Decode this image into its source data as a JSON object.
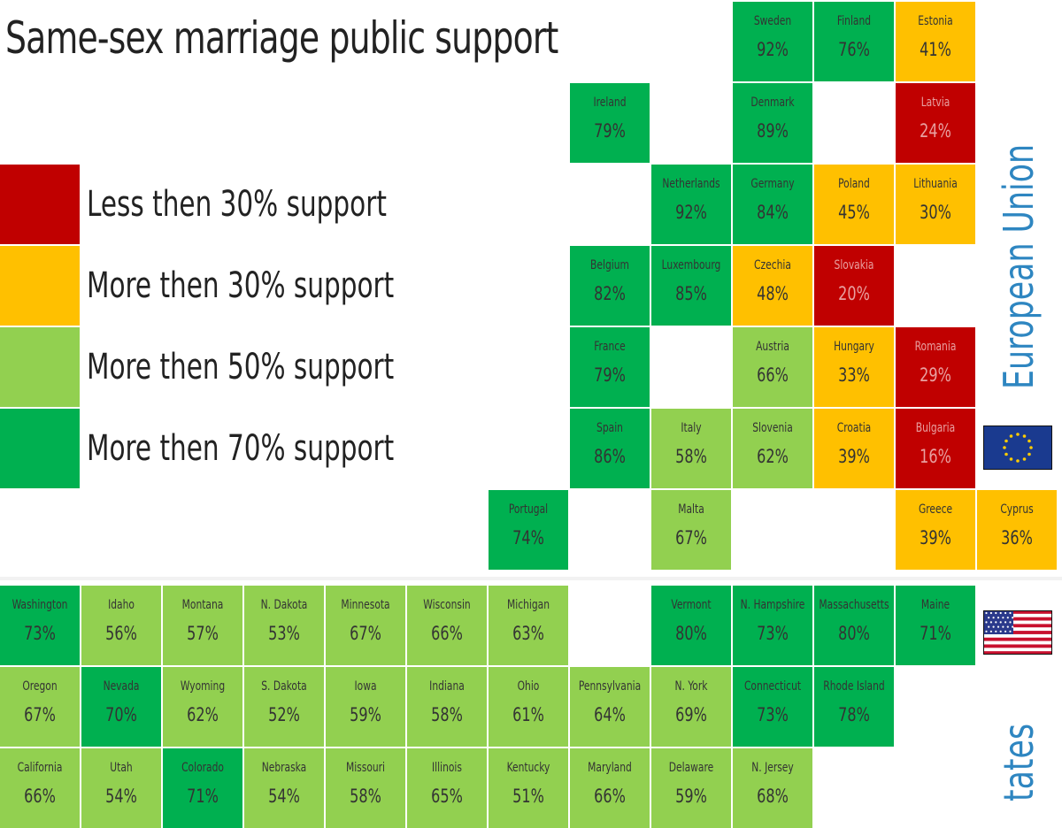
{
  "title": "Same-sex marriage public support",
  "legend": [
    {
      "label": "Less then 30% support",
      "color": "#c00000"
    },
    {
      "label": "More then 30% support",
      "color": "#ffc000"
    },
    {
      "label": "More then 50% support",
      "color": "#92d050"
    },
    {
      "label": "More then 70% support",
      "color": "#00b050"
    }
  ],
  "eu_label": "European Union",
  "us_label": "tates",
  "chart_data": {
    "type": "table",
    "title": "Same-sex marriage public support",
    "regions": [
      {
        "name": "European Union",
        "entries": [
          {
            "name": "Sweden",
            "value": 92,
            "row": 0,
            "col": 9
          },
          {
            "name": "Finland",
            "value": 76,
            "row": 0,
            "col": 10
          },
          {
            "name": "Estonia",
            "value": 41,
            "row": 0,
            "col": 11
          },
          {
            "name": "Ireland",
            "value": 79,
            "row": 1,
            "col": 7
          },
          {
            "name": "Denmark",
            "value": 89,
            "row": 1,
            "col": 9
          },
          {
            "name": "Latvia",
            "value": 24,
            "row": 1,
            "col": 11
          },
          {
            "name": "Netherlands",
            "value": 92,
            "row": 2,
            "col": 8
          },
          {
            "name": "Germany",
            "value": 84,
            "row": 2,
            "col": 9
          },
          {
            "name": "Poland",
            "value": 45,
            "row": 2,
            "col": 10
          },
          {
            "name": "Lithuania",
            "value": 30,
            "row": 2,
            "col": 11
          },
          {
            "name": "Belgium",
            "value": 82,
            "row": 3,
            "col": 7
          },
          {
            "name": "Luxembourg",
            "value": 85,
            "row": 3,
            "col": 8
          },
          {
            "name": "Czechia",
            "value": 48,
            "row": 3,
            "col": 9
          },
          {
            "name": "Slovakia",
            "value": 20,
            "row": 3,
            "col": 10
          },
          {
            "name": "France",
            "value": 79,
            "row": 4,
            "col": 7
          },
          {
            "name": "Austria",
            "value": 66,
            "row": 4,
            "col": 9
          },
          {
            "name": "Hungary",
            "value": 33,
            "row": 4,
            "col": 10
          },
          {
            "name": "Romania",
            "value": 29,
            "row": 4,
            "col": 11
          },
          {
            "name": "Spain",
            "value": 86,
            "row": 5,
            "col": 7
          },
          {
            "name": "Italy",
            "value": 58,
            "row": 5,
            "col": 8
          },
          {
            "name": "Slovenia",
            "value": 62,
            "row": 5,
            "col": 9
          },
          {
            "name": "Croatia",
            "value": 39,
            "row": 5,
            "col": 10
          },
          {
            "name": "Bulgaria",
            "value": 16,
            "row": 5,
            "col": 11
          },
          {
            "name": "Portugal",
            "value": 74,
            "row": 6,
            "col": 6
          },
          {
            "name": "Malta",
            "value": 67,
            "row": 6,
            "col": 8
          },
          {
            "name": "Greece",
            "value": 39,
            "row": 6,
            "col": 11
          },
          {
            "name": "Cyprus",
            "value": 36,
            "row": 6,
            "col": 12
          }
        ]
      },
      {
        "name": "United States",
        "entries": [
          {
            "name": "Washington",
            "value": 73,
            "row": 7,
            "col": 0
          },
          {
            "name": "Idaho",
            "value": 56,
            "row": 7,
            "col": 1
          },
          {
            "name": "Montana",
            "value": 57,
            "row": 7,
            "col": 2
          },
          {
            "name": "N. Dakota",
            "value": 53,
            "row": 7,
            "col": 3
          },
          {
            "name": "Minnesota",
            "value": 67,
            "row": 7,
            "col": 4
          },
          {
            "name": "Wisconsin",
            "value": 66,
            "row": 7,
            "col": 5
          },
          {
            "name": "Michigan",
            "value": 63,
            "row": 7,
            "col": 6
          },
          {
            "name": "Vermont",
            "value": 80,
            "row": 7,
            "col": 8
          },
          {
            "name": "N. Hampshire",
            "value": 73,
            "row": 7,
            "col": 9
          },
          {
            "name": "Massachusetts",
            "value": 80,
            "row": 7,
            "col": 10
          },
          {
            "name": "Maine",
            "value": 71,
            "row": 7,
            "col": 11
          },
          {
            "name": "Oregon",
            "value": 67,
            "row": 8,
            "col": 0
          },
          {
            "name": "Nevada",
            "value": 70,
            "row": 8,
            "col": 1
          },
          {
            "name": "Wyoming",
            "value": 62,
            "row": 8,
            "col": 2
          },
          {
            "name": "S. Dakota",
            "value": 52,
            "row": 8,
            "col": 3
          },
          {
            "name": "Iowa",
            "value": 59,
            "row": 8,
            "col": 4
          },
          {
            "name": "Indiana",
            "value": 58,
            "row": 8,
            "col": 5
          },
          {
            "name": "Ohio",
            "value": 61,
            "row": 8,
            "col": 6
          },
          {
            "name": "Pennsylvania",
            "value": 64,
            "row": 8,
            "col": 7
          },
          {
            "name": "N. York",
            "value": 69,
            "row": 8,
            "col": 8
          },
          {
            "name": "Connecticut",
            "value": 73,
            "row": 8,
            "col": 9
          },
          {
            "name": "Rhode Island",
            "value": 78,
            "row": 8,
            "col": 10
          },
          {
            "name": "California",
            "value": 66,
            "row": 9,
            "col": 0
          },
          {
            "name": "Utah",
            "value": 54,
            "row": 9,
            "col": 1
          },
          {
            "name": "Colorado",
            "value": 71,
            "row": 9,
            "col": 2
          },
          {
            "name": "Nebraska",
            "value": 54,
            "row": 9,
            "col": 3
          },
          {
            "name": "Missouri",
            "value": 58,
            "row": 9,
            "col": 4
          },
          {
            "name": "Illinois",
            "value": 65,
            "row": 9,
            "col": 5
          },
          {
            "name": "Kentucky",
            "value": 51,
            "row": 9,
            "col": 6
          },
          {
            "name": "Maryland",
            "value": 66,
            "row": 9,
            "col": 7
          },
          {
            "name": "Delaware",
            "value": 59,
            "row": 9,
            "col": 8
          },
          {
            "name": "N. Jersey",
            "value": 68,
            "row": 9,
            "col": 9
          }
        ]
      }
    ]
  }
}
